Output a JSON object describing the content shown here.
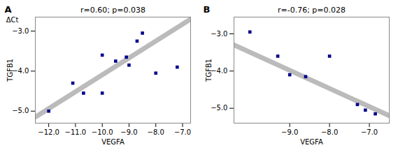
{
  "chart_data": [
    {
      "type": "scatter",
      "title": "r=0.60; p=0.038",
      "annotations": [
        "A",
        "ΔCt"
      ],
      "x_label": "VEGFA",
      "y_label": "TGFB1",
      "xlim": [
        -12.5,
        -6.7
      ],
      "ylim": [
        -5.3,
        -2.65
      ],
      "xticks": [
        -12,
        -11,
        -10,
        -9,
        -8,
        -7
      ],
      "yticks": [
        -5,
        -4,
        -3
      ],
      "series": [
        {
          "type": "line",
          "color": "#BBBBBB",
          "x": [
            -12.5,
            -6.7
          ],
          "values": [
            -5.15,
            -2.7
          ]
        },
        {
          "type": "scatter",
          "color": "#00008B",
          "marker": "square",
          "x": [
            -12.0,
            -11.1,
            -10.7,
            -10.0,
            -10.0,
            -9.5,
            -9.1,
            -9.0,
            -8.7,
            -8.5,
            -8.0,
            -7.2
          ],
          "values": [
            -5.0,
            -4.3,
            -4.55,
            -3.6,
            -4.55,
            -3.75,
            -3.65,
            -3.85,
            -3.25,
            -3.05,
            -4.05,
            -3.9
          ]
        }
      ]
    },
    {
      "type": "scatter",
      "title": "r=-0.76; p=0.028",
      "annotations": [
        "B"
      ],
      "x_label": "VEGFA",
      "y_label": "TGFB1",
      "xlim": [
        -10.4,
        -6.5
      ],
      "ylim": [
        -5.4,
        -2.55
      ],
      "xticks": [
        -9,
        -8,
        -7
      ],
      "yticks": [
        -5,
        -4,
        -3
      ],
      "series": [
        {
          "type": "line",
          "color": "#BBBBBB",
          "x": [
            -10.4,
            -6.5
          ],
          "values": [
            -3.3,
            -5.2
          ]
        },
        {
          "type": "scatter",
          "color": "#00008B",
          "marker": "square",
          "x": [
            -10.0,
            -9.3,
            -9.0,
            -8.6,
            -8.0,
            -7.3,
            -7.1,
            -6.85
          ],
          "values": [
            -2.95,
            -3.6,
            -4.1,
            -4.15,
            -3.6,
            -4.9,
            -5.05,
            -5.15
          ]
        }
      ]
    }
  ]
}
